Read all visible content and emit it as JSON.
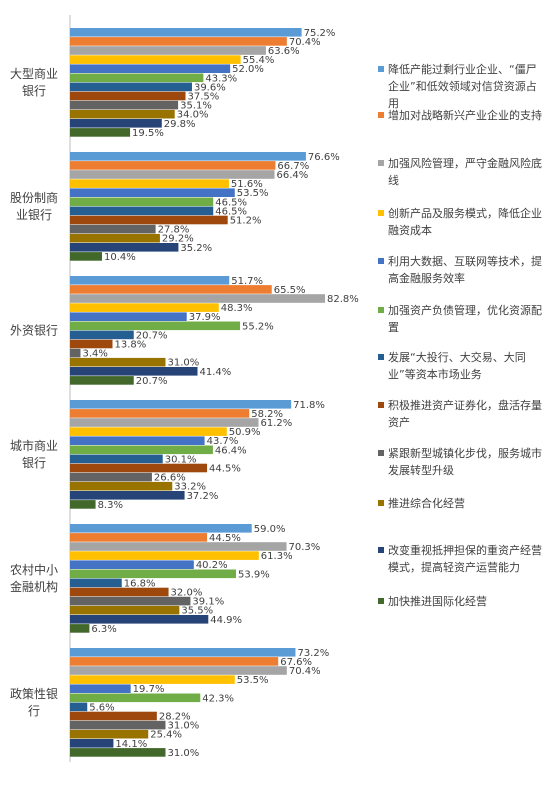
{
  "chart_data": {
    "type": "bar",
    "orientation": "horizontal",
    "categories": [
      "大型商业银行",
      "股份制商业银行",
      "外资银行",
      "城市商业银行",
      "农村中小金融机构",
      "政策性银行"
    ],
    "xlim": [
      0,
      100
    ],
    "series": [
      {
        "name": "降低产能过剩行业企业、“僵尸企业”和低效领域对信贷资源占用",
        "color": "#5b9bd5",
        "values": [
          75.2,
          76.6,
          51.7,
          71.8,
          59.0,
          73.2
        ],
        "value_labels": [
          "75.2%",
          "76.6%",
          "51.7%",
          "71.8%",
          "59.0%",
          "73.2%"
        ]
      },
      {
        "name": "增加对战略新兴产业企业的支持",
        "color": "#ed7d31",
        "values": [
          70.4,
          66.7,
          65.5,
          58.2,
          44.5,
          67.6
        ],
        "value_labels": [
          "70.4%",
          "66.7%",
          "65.5%",
          "58.2%",
          "44.5%",
          "67.6%"
        ]
      },
      {
        "name": "加强风险管理，严守金融风险底线",
        "color": "#a5a5a5",
        "values": [
          63.6,
          66.4,
          82.8,
          61.2,
          70.3,
          70.4
        ],
        "value_labels": [
          "63.6%",
          "66.4%",
          "82.8%",
          "61.2%",
          "70.3%",
          "70.4%"
        ]
      },
      {
        "name": "创新产品及服务模式，降低企业融资成本",
        "color": "#ffc000",
        "values": [
          55.4,
          51.6,
          48.3,
          50.9,
          61.3,
          53.5
        ],
        "value_labels": [
          "55.4%",
          "51.6%",
          "48.3%",
          "50.9%",
          "61.3%",
          "53.5%"
        ]
      },
      {
        "name": "利用大数据、互联网等技术，提高金融服务效率",
        "color": "#4472c4",
        "values": [
          52.0,
          53.5,
          37.9,
          43.7,
          40.2,
          19.7
        ],
        "value_labels": [
          "52.0%",
          "53.5%",
          "37.9%",
          "43.7%",
          "40.2%",
          "19.7%"
        ]
      },
      {
        "name": "加强资产负债管理，优化资源配置",
        "color": "#70ad47",
        "values": [
          43.3,
          46.5,
          55.2,
          46.4,
          53.9,
          42.3
        ],
        "value_labels": [
          "43.3%",
          "46.5%",
          "55.2%",
          "46.4%",
          "53.9%",
          "42.3%"
        ]
      },
      {
        "name": "发展“大投行、大交易、大同业”等资本市场业务",
        "color": "#255e91",
        "values": [
          39.6,
          46.5,
          20.7,
          30.1,
          16.8,
          5.6
        ],
        "value_labels": [
          "39.6%",
          "46.5%",
          "20.7%",
          "30.1%",
          "16.8%",
          "5.6%"
        ]
      },
      {
        "name": "积极推进资产证券化，盘活存量资产",
        "color": "#9e480e",
        "values": [
          37.5,
          51.2,
          13.8,
          44.5,
          32.0,
          28.2
        ],
        "value_labels": [
          "37.5%",
          "51.2%",
          "13.8%",
          "44.5%",
          "32.0%",
          "28.2%"
        ]
      },
      {
        "name": "紧跟新型城镇化步伐，服务城市发展转型升级",
        "color": "#636363",
        "values": [
          35.1,
          27.8,
          3.4,
          26.6,
          39.1,
          31.0
        ],
        "value_labels": [
          "35.1%",
          "27.8%",
          "3.4%",
          "26.6%",
          "39.1%",
          "31.0%"
        ]
      },
      {
        "name": "推进综合化经营",
        "color": "#997300",
        "values": [
          34.0,
          29.2,
          31.0,
          33.2,
          35.5,
          25.4
        ],
        "value_labels": [
          "34.0%",
          "29.2%",
          "31.0%",
          "33.2%",
          "35.5%",
          "25.4%"
        ]
      },
      {
        "name": "改变重视抵押担保的重资产经营模式，提高轻资产运营能力",
        "color": "#264478",
        "values": [
          29.8,
          35.2,
          41.4,
          37.2,
          44.9,
          14.1
        ],
        "value_labels": [
          "29.8%",
          "35.2%",
          "41.4%",
          "37.2%",
          "44.9%",
          "14.1%"
        ]
      },
      {
        "name": "加快推进国际化经营",
        "color": "#43682b",
        "values": [
          19.5,
          10.4,
          20.7,
          8.3,
          6.3,
          31.0
        ],
        "value_labels": [
          "19.5%",
          "10.4%",
          "20.7%",
          "8.3%",
          "6.3%",
          "31.0%"
        ]
      }
    ]
  }
}
